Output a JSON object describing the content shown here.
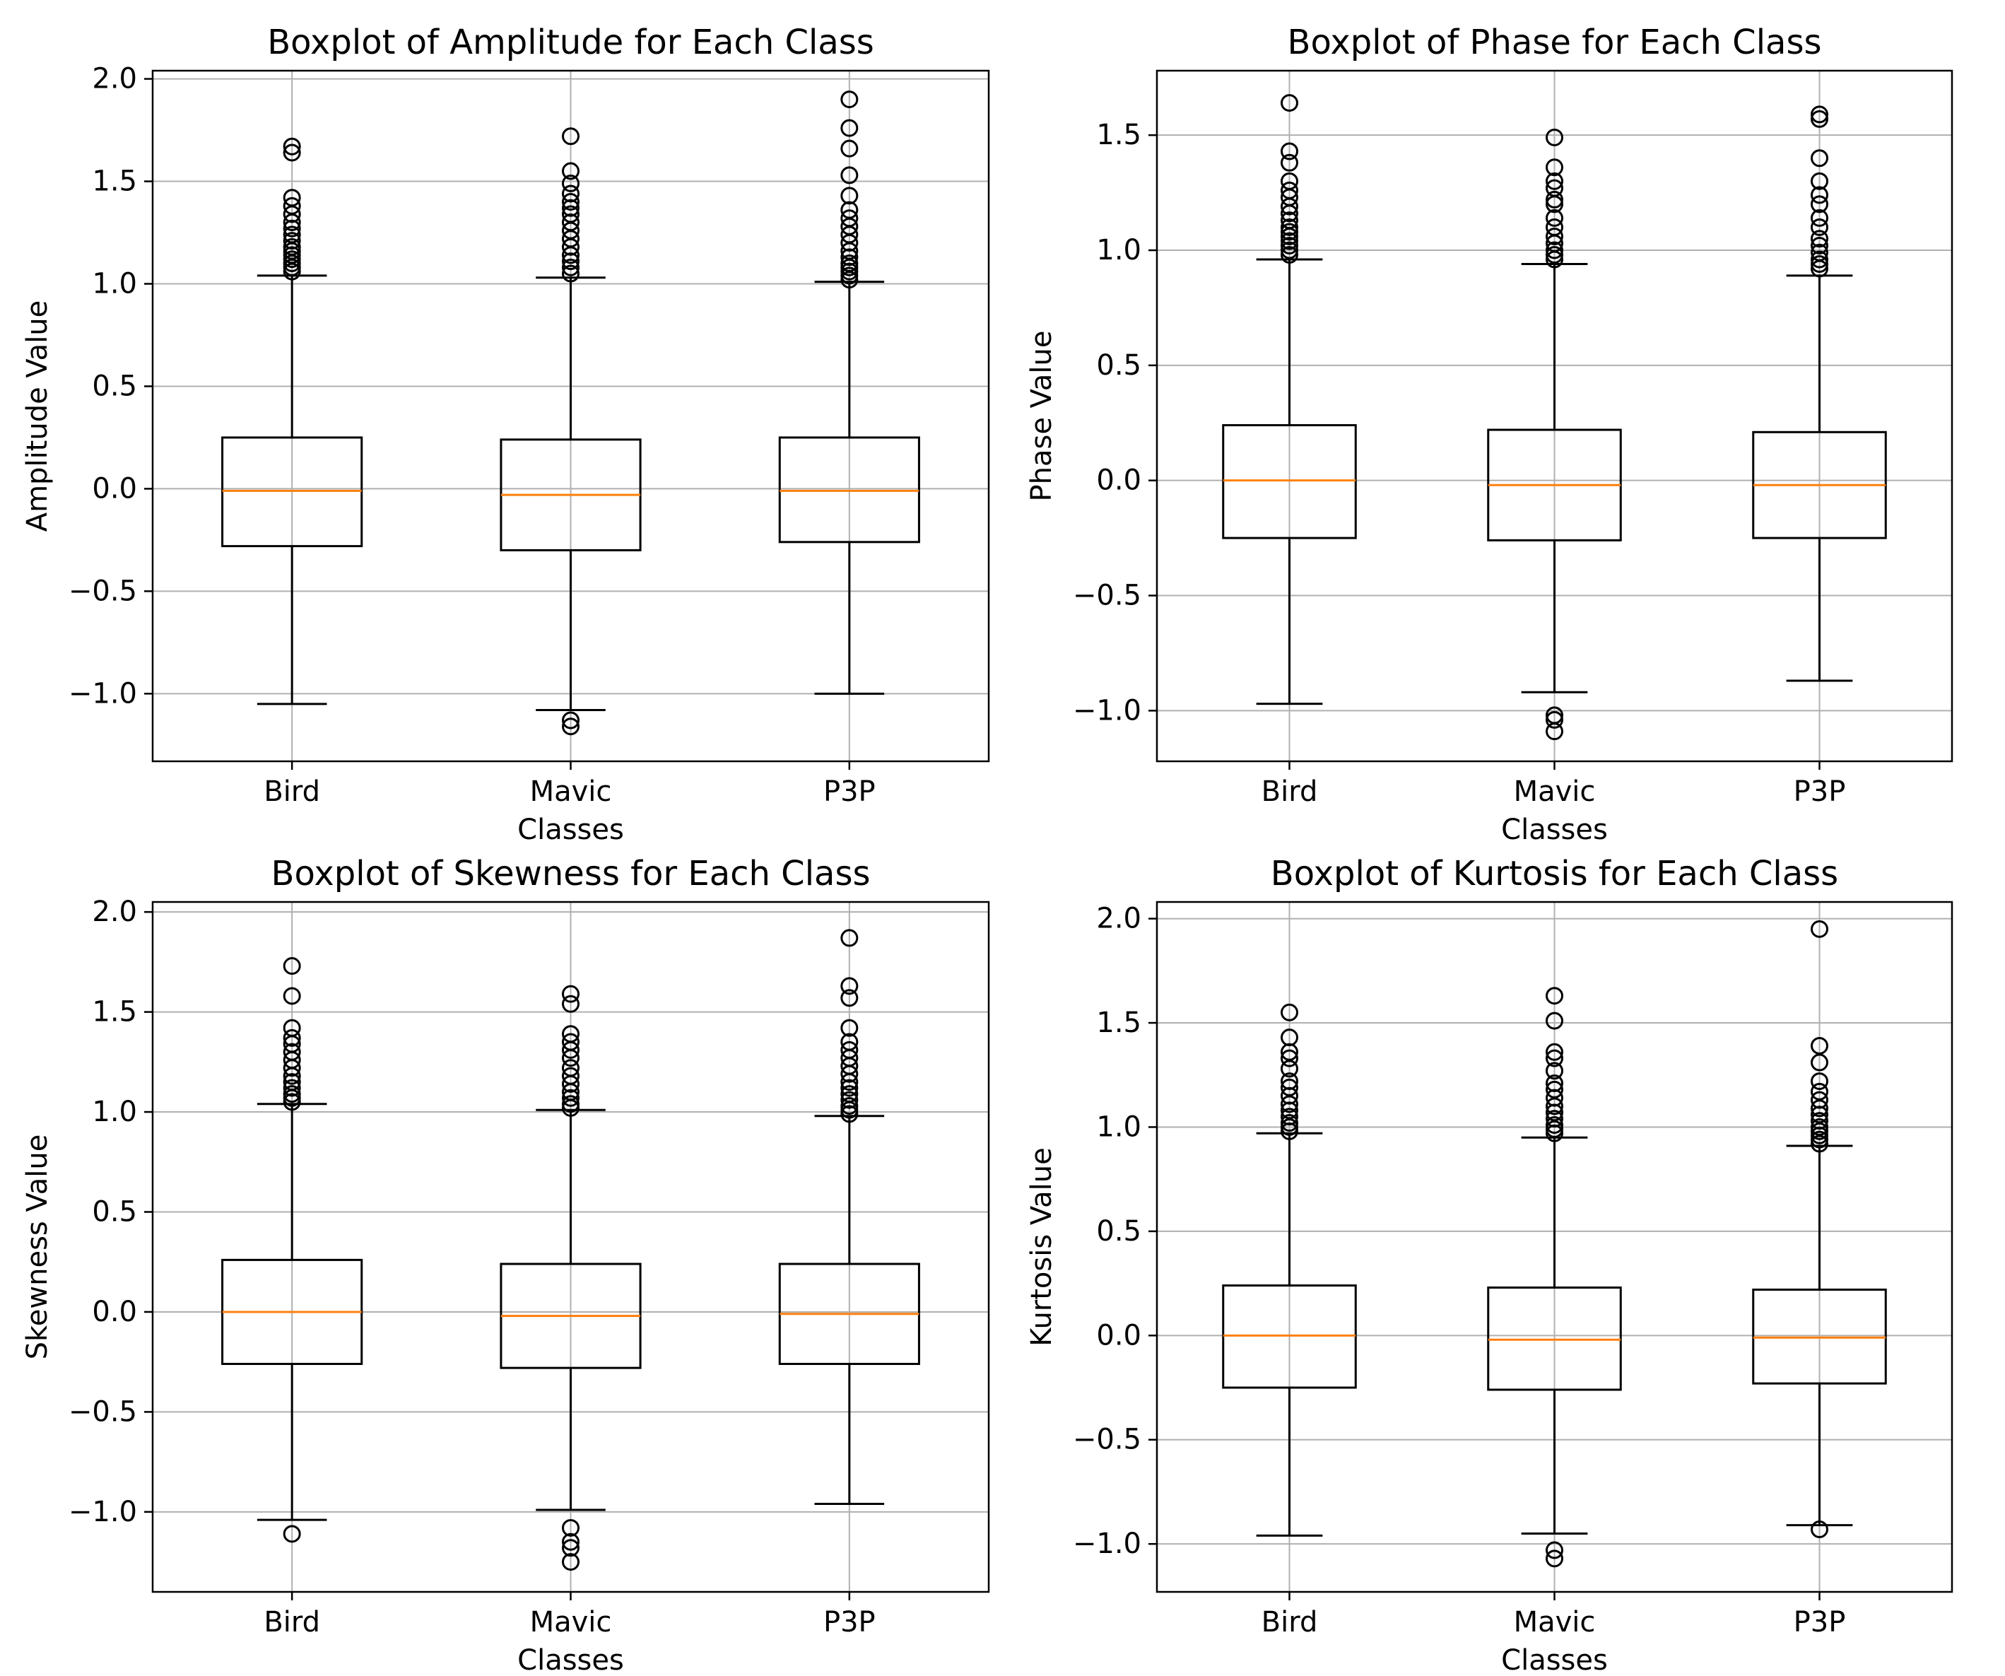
{
  "chart_data": [
    {
      "type": "box",
      "title": "Boxplot of Amplitude for Each Class",
      "xlabel": "Classes",
      "ylabel": "Amplitude Value",
      "categories": [
        "Bird",
        "Mavic",
        "P3P"
      ],
      "ylim": [
        -1.33,
        2.04
      ],
      "yticks": [
        2.0,
        1.5,
        1.0,
        0.5,
        0.0,
        -0.5,
        -1.0
      ],
      "ytick_labels": [
        "2.0",
        "1.5",
        "1.0",
        "0.5",
        "0.0",
        "−0.5",
        "−1.0"
      ],
      "grid": true,
      "boxes": [
        {
          "whislo": -1.05,
          "q1": -0.28,
          "med": -0.01,
          "q3": 0.25,
          "whishi": 1.04,
          "fliers": [
            1.06,
            1.08,
            1.1,
            1.12,
            1.14,
            1.16,
            1.18,
            1.21,
            1.24,
            1.27,
            1.3,
            1.34,
            1.38,
            1.42,
            1.64,
            1.67
          ]
        },
        {
          "whislo": -1.08,
          "q1": -0.3,
          "med": -0.03,
          "q3": 0.24,
          "whishi": 1.03,
          "fliers": [
            -1.13,
            -1.16,
            1.05,
            1.08,
            1.11,
            1.14,
            1.18,
            1.22,
            1.26,
            1.3,
            1.34,
            1.37,
            1.4,
            1.44,
            1.49,
            1.55,
            1.72
          ]
        },
        {
          "whislo": -1.0,
          "q1": -0.26,
          "med": -0.01,
          "q3": 0.25,
          "whishi": 1.01,
          "fliers": [
            1.02,
            1.04,
            1.06,
            1.08,
            1.1,
            1.13,
            1.16,
            1.2,
            1.24,
            1.28,
            1.32,
            1.36,
            1.43,
            1.53,
            1.66,
            1.76,
            1.9
          ]
        }
      ]
    },
    {
      "type": "box",
      "title": "Boxplot of Phase for Each Class",
      "xlabel": "Classes",
      "ylabel": "Phase Value",
      "categories": [
        "Bird",
        "Mavic",
        "P3P"
      ],
      "ylim": [
        -1.22,
        1.78
      ],
      "yticks": [
        1.5,
        1.0,
        0.5,
        0.0,
        -0.5,
        -1.0
      ],
      "ytick_labels": [
        "1.5",
        "1.0",
        "0.5",
        "0.0",
        "−0.5",
        "−1.0"
      ],
      "grid": true,
      "boxes": [
        {
          "whislo": -0.97,
          "q1": -0.25,
          "med": 0.0,
          "q3": 0.24,
          "whishi": 0.96,
          "fliers": [
            0.98,
            1.0,
            1.02,
            1.04,
            1.06,
            1.08,
            1.1,
            1.13,
            1.16,
            1.19,
            1.23,
            1.26,
            1.3,
            1.38,
            1.43,
            1.64
          ]
        },
        {
          "whislo": -0.92,
          "q1": -0.26,
          "med": -0.02,
          "q3": 0.22,
          "whishi": 0.94,
          "fliers": [
            -1.02,
            -1.04,
            -1.09,
            0.96,
            0.98,
            1.0,
            1.03,
            1.06,
            1.1,
            1.14,
            1.2,
            1.22,
            1.27,
            1.3,
            1.36,
            1.49
          ]
        },
        {
          "whislo": -0.87,
          "q1": -0.25,
          "med": -0.02,
          "q3": 0.21,
          "whishi": 0.89,
          "fliers": [
            0.92,
            0.94,
            0.96,
            0.99,
            1.02,
            1.05,
            1.1,
            1.14,
            1.2,
            1.24,
            1.3,
            1.4,
            1.57,
            1.59
          ]
        }
      ]
    },
    {
      "type": "box",
      "title": "Boxplot of Skewness for Each Class",
      "xlabel": "Classes",
      "ylabel": "Skewness Value",
      "categories": [
        "Bird",
        "Mavic",
        "P3P"
      ],
      "ylim": [
        -1.4,
        2.05
      ],
      "yticks": [
        2.0,
        1.5,
        1.0,
        0.5,
        0.0,
        -0.5,
        -1.0
      ],
      "ytick_labels": [
        "2.0",
        "1.5",
        "1.0",
        "0.5",
        "0.0",
        "−0.5",
        "−1.0"
      ],
      "grid": true,
      "boxes": [
        {
          "whislo": -1.04,
          "q1": -0.26,
          "med": 0.0,
          "q3": 0.26,
          "whishi": 1.04,
          "fliers": [
            -1.11,
            1.05,
            1.07,
            1.09,
            1.12,
            1.15,
            1.18,
            1.22,
            1.26,
            1.3,
            1.34,
            1.37,
            1.42,
            1.58,
            1.73
          ]
        },
        {
          "whislo": -0.99,
          "q1": -0.28,
          "med": -0.02,
          "q3": 0.24,
          "whishi": 1.01,
          "fliers": [
            -1.08,
            -1.15,
            -1.18,
            -1.25,
            1.02,
            1.04,
            1.07,
            1.1,
            1.14,
            1.18,
            1.22,
            1.27,
            1.31,
            1.35,
            1.39,
            1.54,
            1.59
          ]
        },
        {
          "whislo": -0.96,
          "q1": -0.26,
          "med": -0.01,
          "q3": 0.24,
          "whishi": 0.98,
          "fliers": [
            0.99,
            1.01,
            1.03,
            1.06,
            1.09,
            1.12,
            1.15,
            1.19,
            1.23,
            1.27,
            1.31,
            1.35,
            1.42,
            1.57,
            1.63,
            1.87
          ]
        }
      ]
    },
    {
      "type": "box",
      "title": "Boxplot of Kurtosis for Each Class",
      "xlabel": "Classes",
      "ylabel": "Kurtosis Value",
      "categories": [
        "Bird",
        "Mavic",
        "P3P"
      ],
      "ylim": [
        -1.23,
        2.08
      ],
      "yticks": [
        2.0,
        1.5,
        1.0,
        0.5,
        0.0,
        -0.5,
        -1.0
      ],
      "ytick_labels": [
        "2.0",
        "1.5",
        "1.0",
        "0.5",
        "0.0",
        "−0.5",
        "−1.0"
      ],
      "grid": true,
      "boxes": [
        {
          "whislo": -0.96,
          "q1": -0.25,
          "med": 0.0,
          "q3": 0.24,
          "whishi": 0.97,
          "fliers": [
            0.98,
            1.0,
            1.02,
            1.05,
            1.08,
            1.11,
            1.15,
            1.19,
            1.22,
            1.28,
            1.33,
            1.36,
            1.43,
            1.55
          ]
        },
        {
          "whislo": -0.95,
          "q1": -0.26,
          "med": -0.02,
          "q3": 0.23,
          "whishi": 0.95,
          "fliers": [
            -1.03,
            -1.07,
            0.97,
            0.99,
            1.01,
            1.04,
            1.07,
            1.1,
            1.14,
            1.18,
            1.21,
            1.27,
            1.33,
            1.36,
            1.51,
            1.63
          ]
        },
        {
          "whislo": -0.91,
          "q1": -0.23,
          "med": -0.01,
          "q3": 0.22,
          "whishi": 0.91,
          "fliers": [
            -0.93,
            0.92,
            0.94,
            0.96,
            0.98,
            1.0,
            1.03,
            1.06,
            1.09,
            1.13,
            1.17,
            1.22,
            1.31,
            1.39,
            1.95
          ]
        }
      ]
    }
  ]
}
